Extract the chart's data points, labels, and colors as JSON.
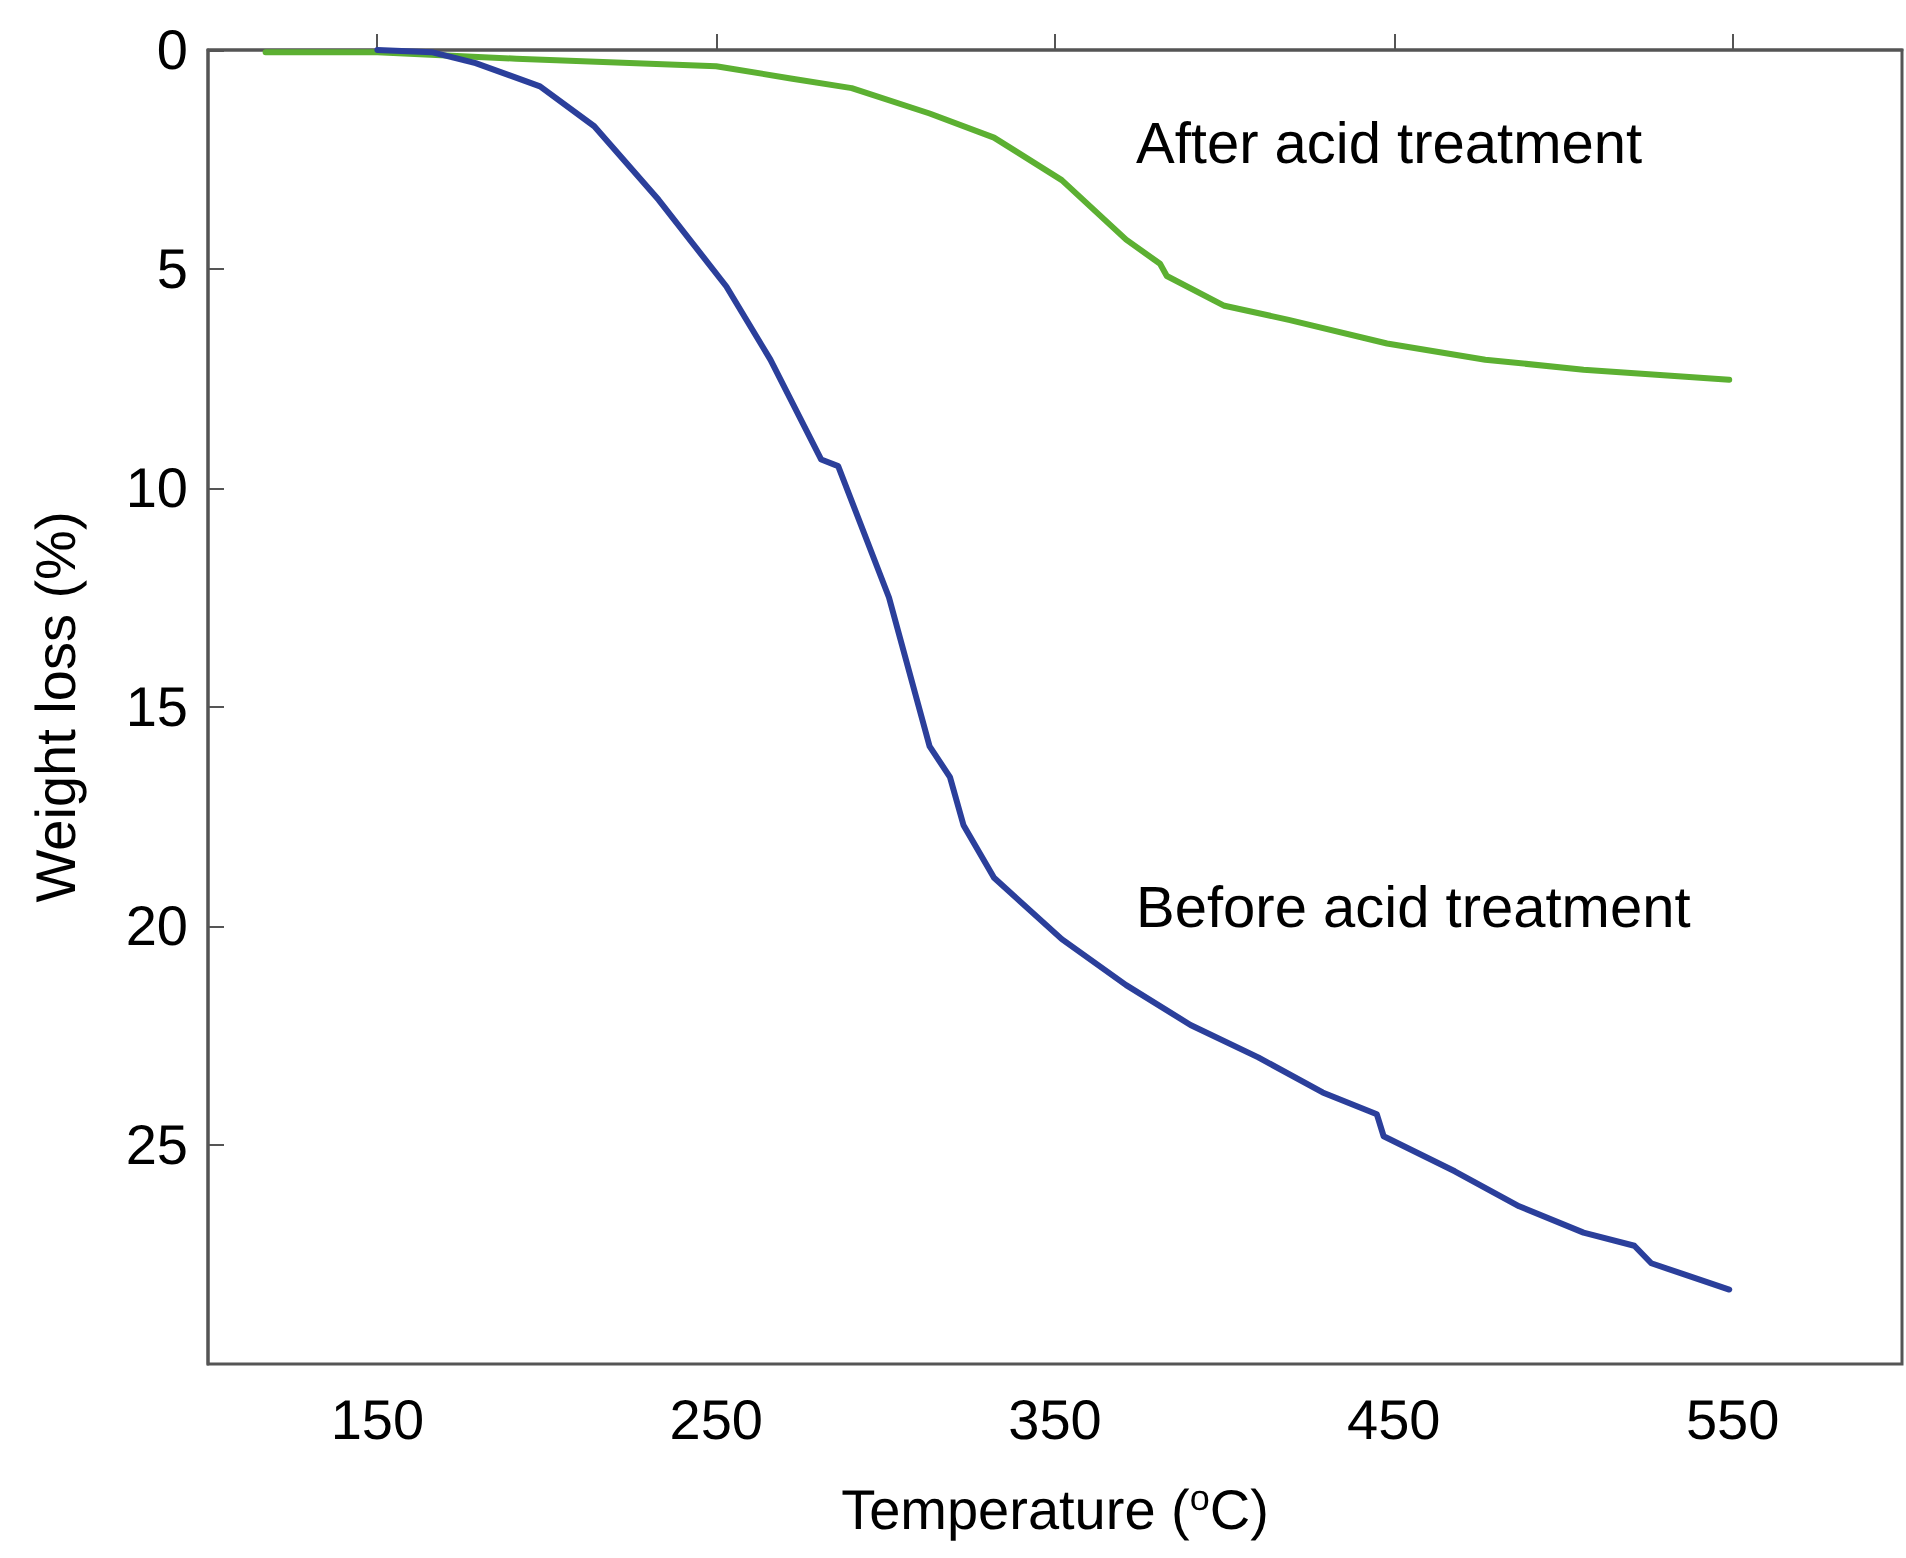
{
  "chart_data": {
    "type": "line",
    "xlabel": "Temperature ($^{o}$C)",
    "ylabel": "Weight loss (%)",
    "xlim": [
      100,
      600
    ],
    "xticks": [
      150,
      250,
      350,
      450,
      550
    ],
    "ylim": [
      30,
      0
    ],
    "yticks": [
      0,
      5,
      10,
      15,
      20,
      25
    ],
    "grid": false,
    "legend": false,
    "marker": "none",
    "line_style": "solid",
    "series": [
      {
        "name": "After acid treatment",
        "color": "#5cb032",
        "x": [
          117,
          150,
          191,
          250,
          272,
          290,
          313,
          332,
          352,
          371,
          381,
          383,
          400,
          419,
          448,
          477,
          506,
          549
        ],
        "values": [
          0.05,
          0.05,
          0.2,
          0.37,
          0.65,
          0.87,
          1.45,
          2.0,
          2.97,
          4.33,
          4.88,
          5.16,
          5.84,
          6.16,
          6.7,
          7.07,
          7.3,
          7.53
        ]
      },
      {
        "name": "Before acid treatment",
        "color": "#2b3f9b",
        "x": [
          150,
          166,
          179,
          198,
          214,
          233,
          253,
          266,
          281,
          286,
          301,
          313,
          319,
          323,
          332,
          352,
          371,
          390,
          410,
          429,
          445,
          447,
          468,
          487,
          506,
          521,
          526,
          549
        ],
        "values": [
          0,
          0.05,
          0.3,
          0.83,
          1.74,
          3.42,
          5.4,
          7.07,
          9.35,
          9.5,
          12.5,
          15.9,
          16.6,
          17.7,
          18.9,
          20.3,
          21.35,
          22.26,
          23.0,
          23.8,
          24.3,
          24.8,
          25.6,
          26.4,
          27.0,
          27.3,
          27.7,
          28.3
        ]
      }
    ]
  }
}
